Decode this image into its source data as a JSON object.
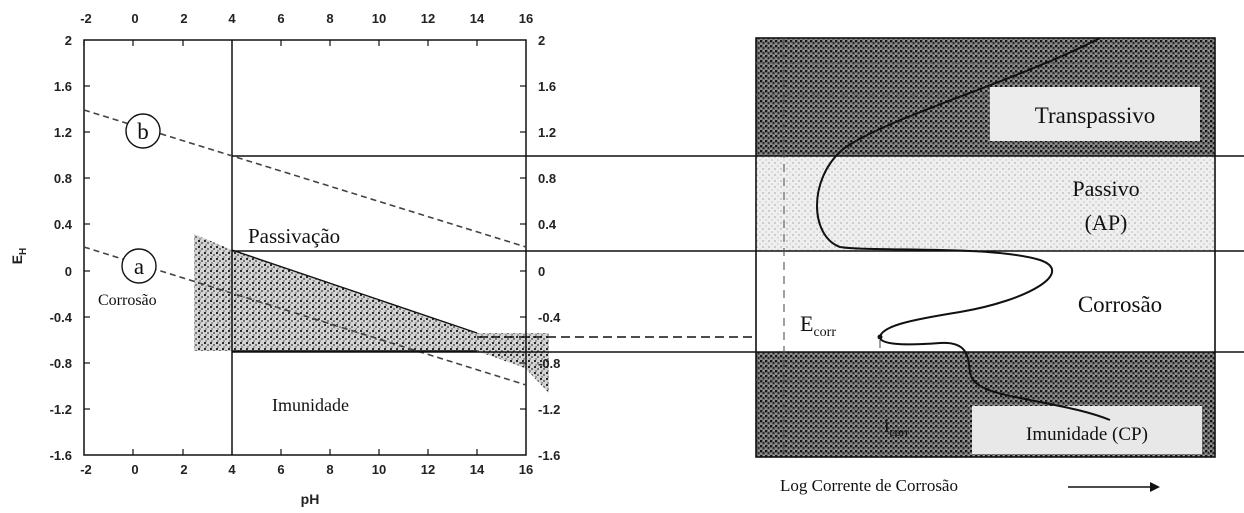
{
  "left_plot": {
    "y_axis_label": "E",
    "y_axis_label_sub": "H",
    "x_axis_label": "pH",
    "x_ticks": [
      "-2",
      "0",
      "2",
      "4",
      "6",
      "8",
      "10",
      "12",
      "14",
      "16"
    ],
    "y_ticks": [
      "2",
      "1.6",
      "1.2",
      "0.8",
      "0.4",
      "0",
      "-0.4",
      "-0.8",
      "-1.2",
      "-1.6"
    ],
    "x_range": [
      -2,
      16
    ],
    "y_range": [
      -1.6,
      2.0
    ],
    "line_b_label": "b",
    "line_a_label": "a",
    "region_corrosion": "Corrosão",
    "region_passivation": "Passivação",
    "region_immunity": "Imunidade"
  },
  "right_plot": {
    "region_transpassive": "Transpassivo",
    "region_passive": "Passivo",
    "region_passive_sub": "(AP)",
    "region_corrosion": "Corrosão",
    "ecorr_label": "E",
    "ecorr_sub": "corr",
    "icorr_label": "i",
    "icorr_sub": "corr",
    "region_immunity": "Imunidade (CP)",
    "x_axis_label": "Log Corrente de Corrosão"
  }
}
